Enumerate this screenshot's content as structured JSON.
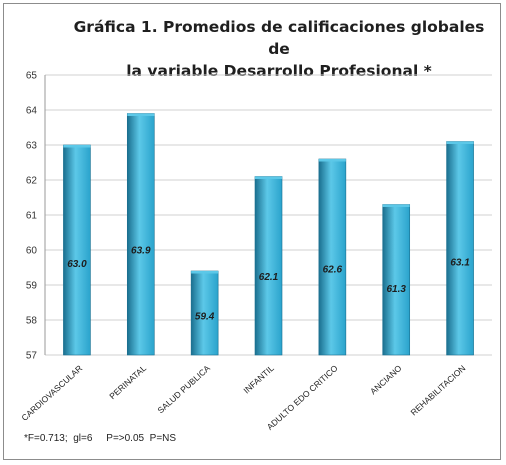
{
  "chart_data": {
    "type": "bar",
    "title_lines": [
      "Gráfica 1. Promedios de  calificaciones globales de",
      "la variable Desarrollo Profesional *"
    ],
    "categories": [
      "CARDIOVASCULAR",
      "PERINATAL",
      "SALUD PUBLICA",
      "INFANTIL",
      "ADULTO EDO CRITICO",
      "ANCIANO",
      "REHABILITACION"
    ],
    "values": [
      63.0,
      63.9,
      59.4,
      62.1,
      62.6,
      61.3,
      63.1
    ],
    "data_labels": [
      "63.0",
      "63.9",
      "59.4",
      "62.1",
      "62.6",
      "61.3",
      "63.1"
    ],
    "ylim": [
      57,
      65
    ],
    "yticks": [
      "57",
      "58",
      "59",
      "60",
      "61",
      "62",
      "63",
      "64",
      "65"
    ],
    "grid": true,
    "bar_color": "#2aa3cc",
    "bar_top_color": "#5cc8e8",
    "bar_dark_color": "#1a6f8f",
    "grid_color": "#d0d0d0",
    "footnote": "*F=0.713;  gl=6     P=>0.05  P=NS"
  }
}
